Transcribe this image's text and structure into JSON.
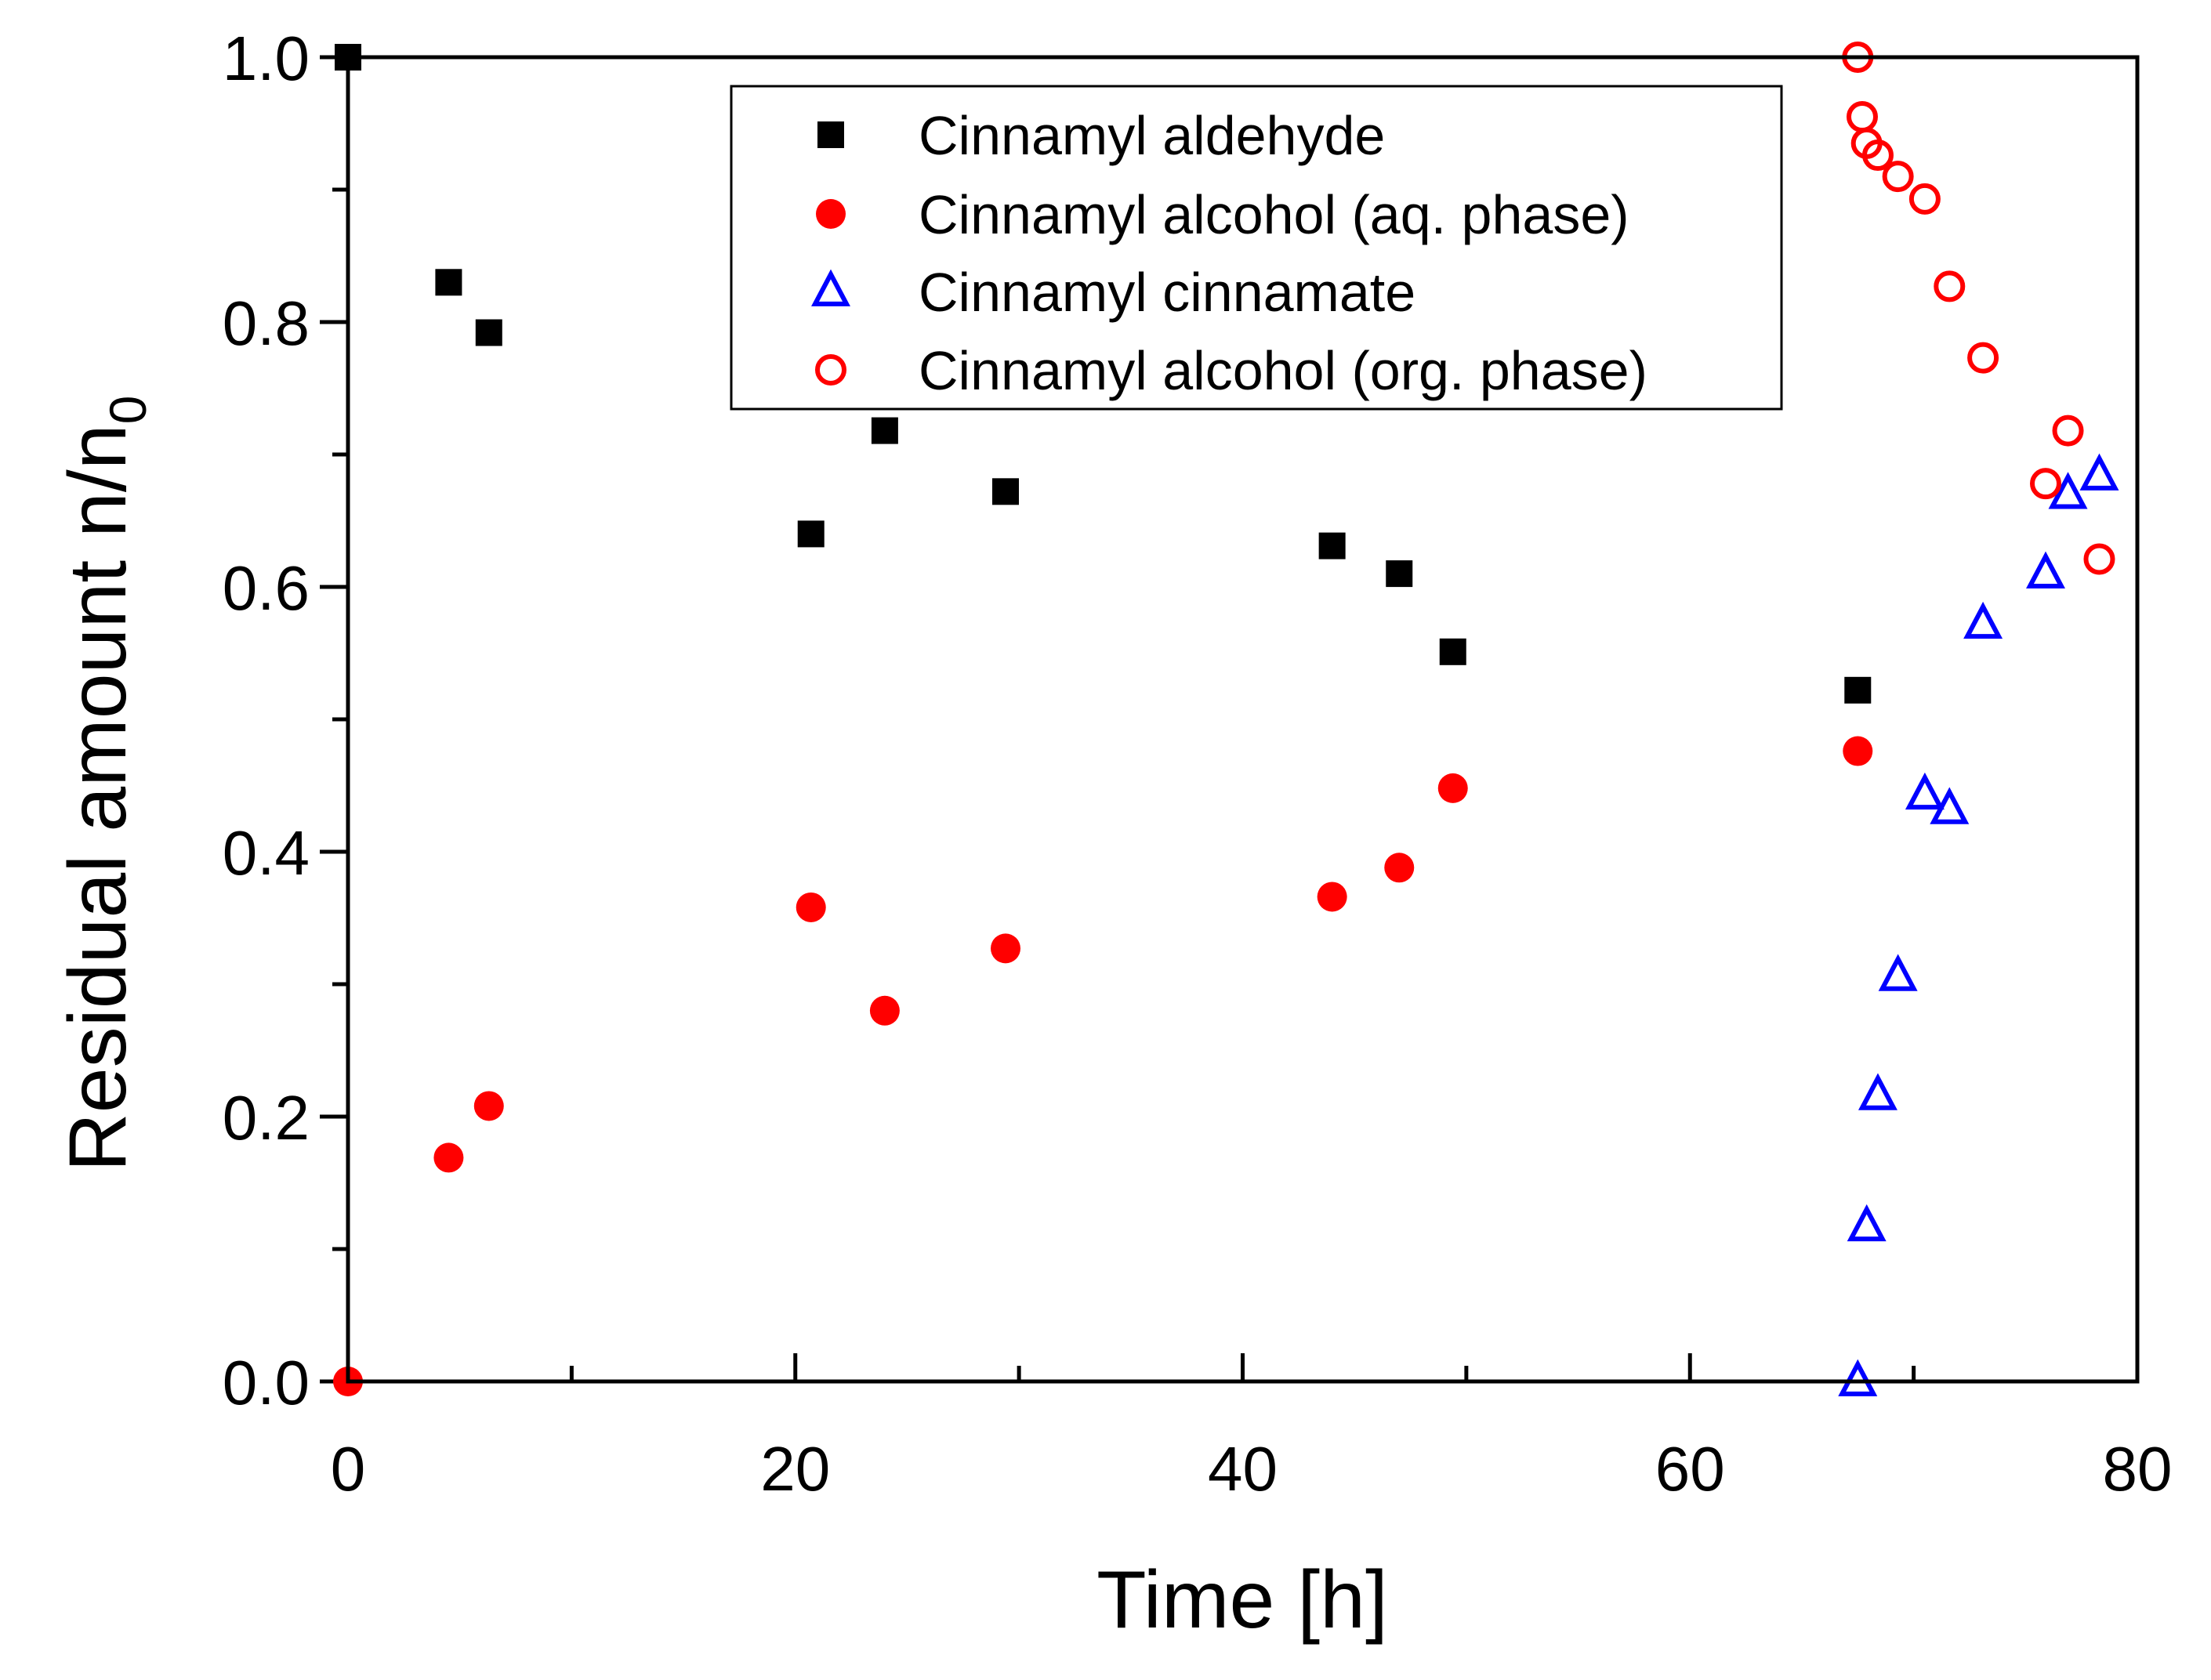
{
  "chart_data": {
    "type": "scatter",
    "title": "",
    "xlabel": "Time [h]",
    "ylabel": "Residual amount n/n",
    "ylabel_subscript": "0",
    "xlim": [
      0,
      80
    ],
    "ylim": [
      0,
      1.0
    ],
    "x_ticks": [
      "0",
      "20",
      "40",
      "60",
      "80"
    ],
    "y_ticks": [
      "0.0",
      "0.2",
      "0.4",
      "0.6",
      "0.8",
      "1.0"
    ],
    "grid": false,
    "legend_position": "top-center",
    "series": [
      {
        "name": "Cinnamyl aldehyde",
        "marker": "filled-square",
        "color": "#000000",
        "x": [
          0,
          4.5,
          6.3,
          20.7,
          24,
          29.4,
          44,
          47,
          49.4,
          67.5
        ],
        "y": [
          1.0,
          0.83,
          0.792,
          0.64,
          0.718,
          0.672,
          0.631,
          0.61,
          0.551,
          0.522
        ]
      },
      {
        "name": "Cinnamyl alcohol (aq. phase)",
        "marker": "filled-circle",
        "color": "#ff0000",
        "x": [
          0,
          4.5,
          6.3,
          20.7,
          24,
          29.4,
          44,
          47,
          49.4,
          67.5
        ],
        "y": [
          0.0,
          0.169,
          0.208,
          0.358,
          0.28,
          0.327,
          0.366,
          0.388,
          0.448,
          0.476
        ]
      },
      {
        "name": "Cinnamyl cinnamate",
        "marker": "open-triangle",
        "color": "#0000ff",
        "x": [
          67.5,
          67.9,
          68.4,
          69.3,
          70.5,
          71.6,
          73.1,
          75.9,
          76.9,
          78.3
        ],
        "y": [
          0.0,
          0.117,
          0.216,
          0.306,
          0.443,
          0.432,
          0.572,
          0.61,
          0.67,
          0.684
        ]
      },
      {
        "name": "Cinnamyl alcohol (org. phase)",
        "marker": "open-circle",
        "color": "#ff0000",
        "x": [
          67.5,
          67.7,
          67.9,
          68.4,
          69.3,
          70.5,
          71.6,
          73.1,
          75.9,
          76.9,
          78.3
        ],
        "y": [
          1.0,
          0.955,
          0.935,
          0.926,
          0.91,
          0.893,
          0.827,
          0.773,
          0.678,
          0.718,
          0.621
        ]
      }
    ]
  }
}
